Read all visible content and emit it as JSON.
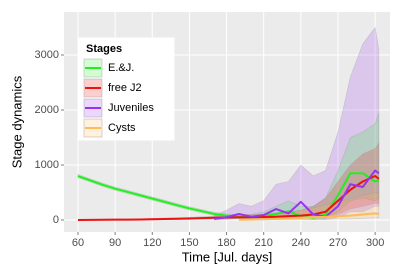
{
  "chart_data": {
    "type": "line",
    "x_label": "Time [Jul. days]",
    "y_label": "Stage dynamics",
    "legend_title": "Stages",
    "legend": "top-left",
    "grid": true,
    "x": [
      60,
      70,
      80,
      90,
      100,
      110,
      120,
      130,
      140,
      150,
      160,
      170,
      180,
      190,
      200,
      210,
      220,
      230,
      240,
      250,
      260,
      270,
      280,
      290,
      300,
      303
    ],
    "xlim": [
      48.7,
      312
    ],
    "xticks": [
      60,
      90,
      120,
      150,
      180,
      210,
      240,
      270,
      300
    ],
    "ylim": [
      -218,
      3782
    ],
    "yticks": [
      0,
      1000,
      2000,
      3000
    ],
    "series": [
      {
        "name": "E.&J.",
        "color": "#22ee22",
        "values": [
          800,
          720,
          640,
          570,
          510,
          450,
          390,
          330,
          270,
          210,
          160,
          110,
          80,
          60,
          50,
          70,
          110,
          160,
          70,
          40,
          100,
          450,
          850,
          850,
          700,
          720
        ],
        "lower": [
          770,
          690,
          610,
          540,
          480,
          420,
          360,
          300,
          240,
          180,
          130,
          80,
          50,
          30,
          20,
          30,
          40,
          50,
          20,
          10,
          30,
          150,
          350,
          400,
          350,
          400
        ],
        "upper": [
          830,
          750,
          670,
          600,
          540,
          480,
          420,
          360,
          300,
          240,
          190,
          140,
          110,
          100,
          100,
          150,
          250,
          350,
          250,
          250,
          400,
          900,
          1500,
          1600,
          1750,
          1950
        ]
      },
      {
        "name": "free J2",
        "color": "#ee1111",
        "values": [
          0,
          2,
          4,
          6,
          8,
          10,
          14,
          18,
          22,
          28,
          35,
          40,
          45,
          50,
          50,
          55,
          60,
          70,
          80,
          100,
          150,
          350,
          550,
          700,
          800,
          750
        ],
        "lower": [
          0,
          0,
          0,
          0,
          0,
          0,
          2,
          5,
          8,
          10,
          15,
          20,
          20,
          25,
          25,
          25,
          25,
          30,
          30,
          40,
          50,
          100,
          200,
          250,
          300,
          300
        ],
        "upper": [
          5,
          8,
          10,
          14,
          18,
          22,
          28,
          35,
          40,
          50,
          60,
          70,
          80,
          90,
          100,
          110,
          130,
          150,
          180,
          250,
          400,
          700,
          1000,
          1200,
          1300,
          1400
        ]
      },
      {
        "name": "Juveniles",
        "color": "#9933ee",
        "values": [
          null,
          null,
          null,
          null,
          null,
          null,
          null,
          null,
          null,
          null,
          null,
          20,
          50,
          110,
          60,
          90,
          200,
          120,
          330,
          100,
          60,
          250,
          650,
          600,
          900,
          850
        ],
        "lower": [
          null,
          null,
          null,
          null,
          null,
          null,
          null,
          null,
          null,
          null,
          null,
          0,
          10,
          30,
          10,
          20,
          50,
          30,
          80,
          20,
          10,
          50,
          150,
          150,
          250,
          250
        ],
        "upper": [
          null,
          null,
          null,
          null,
          null,
          null,
          null,
          null,
          null,
          null,
          null,
          80,
          180,
          300,
          250,
          350,
          650,
          700,
          1000,
          800,
          900,
          1600,
          2600,
          3200,
          3500,
          3100
        ]
      },
      {
        "name": "Cysts",
        "color": "#ffbb55",
        "values": [
          null,
          null,
          null,
          null,
          null,
          null,
          null,
          null,
          null,
          null,
          null,
          null,
          null,
          5,
          10,
          15,
          20,
          30,
          40,
          50,
          60,
          70,
          80,
          100,
          120,
          110
        ],
        "lower": [
          null,
          null,
          null,
          null,
          null,
          null,
          null,
          null,
          null,
          null,
          null,
          null,
          null,
          0,
          0,
          0,
          5,
          5,
          10,
          10,
          15,
          20,
          20,
          30,
          40,
          40
        ],
        "upper": [
          null,
          null,
          null,
          null,
          null,
          null,
          null,
          null,
          null,
          null,
          null,
          null,
          null,
          20,
          40,
          60,
          100,
          130,
          180,
          220,
          280,
          330,
          380,
          450,
          500,
          500
        ]
      }
    ]
  }
}
